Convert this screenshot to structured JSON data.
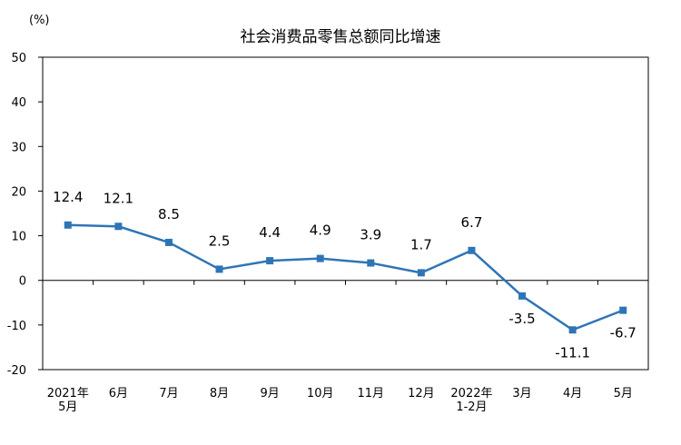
{
  "chart_data": {
    "type": "line",
    "title": "社会消费品零售总额同比增速",
    "y_unit": "(%)",
    "ylim": [
      -20,
      50
    ],
    "yticks": [
      -20,
      -10,
      0,
      10,
      20,
      30,
      40,
      50
    ],
    "grid": false,
    "legend": "none",
    "categories": [
      [
        "2021年",
        "5月"
      ],
      [
        "6月"
      ],
      [
        "7月"
      ],
      [
        "8月"
      ],
      [
        "9月"
      ],
      [
        "10月"
      ],
      [
        "11月"
      ],
      [
        "12月"
      ],
      [
        "2022年",
        "1-2月"
      ],
      [
        "3月"
      ],
      [
        "4月"
      ],
      [
        "5月"
      ]
    ],
    "series": [
      {
        "color": "#2e75b6",
        "values": [
          12.4,
          12.1,
          8.5,
          2.5,
          4.4,
          4.9,
          3.9,
          1.7,
          6.7,
          -3.5,
          -11.1,
          -6.7
        ],
        "labels": [
          "12.4",
          "12.1",
          "8.5",
          "2.5",
          "4.4",
          "4.9",
          "3.9",
          "1.7",
          "6.7",
          "-3.5",
          "-11.1",
          "-6.7"
        ]
      }
    ]
  }
}
